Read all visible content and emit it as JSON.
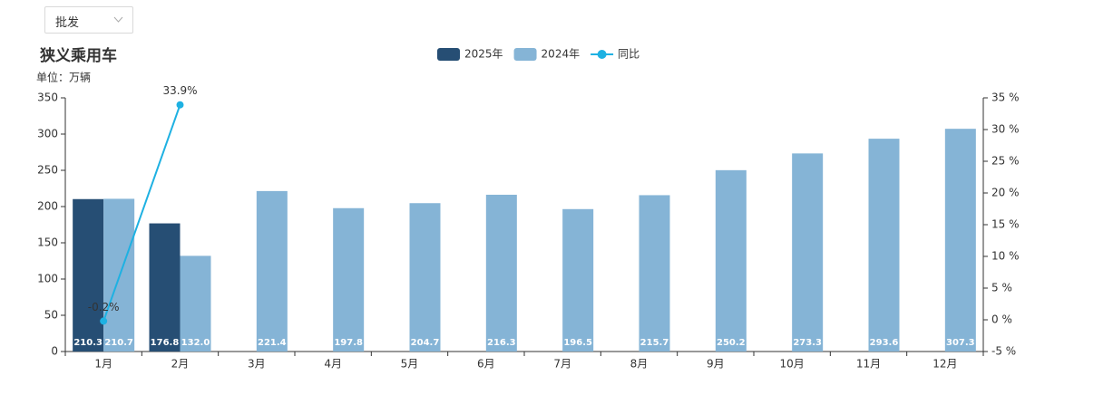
{
  "dropdown": {
    "label": "批发"
  },
  "chart_data": {
    "type": "bar",
    "title": "狭义乘用车",
    "y_axis_label": "单位：万辆",
    "categories": [
      "1月",
      "2月",
      "3月",
      "4月",
      "5月",
      "6月",
      "7月",
      "8月",
      "9月",
      "10月",
      "11月",
      "12月"
    ],
    "series": [
      {
        "name": "2025年",
        "color": "#264e74",
        "values": [
          210.3,
          176.8,
          null,
          null,
          null,
          null,
          null,
          null,
          null,
          null,
          null,
          null
        ],
        "value_labels": [
          "210.3",
          "176.8",
          null,
          null,
          null,
          null,
          null,
          null,
          null,
          null,
          null,
          null
        ]
      },
      {
        "name": "2024年",
        "color": "#85b4d6",
        "values": [
          210.7,
          132.0,
          221.4,
          197.8,
          204.7,
          216.3,
          196.5,
          215.7,
          250.2,
          273.3,
          293.6,
          307.3
        ],
        "value_labels": [
          "210.7",
          "132.0",
          "221.4",
          "197.8",
          "204.7",
          "216.3",
          "196.5",
          "215.7",
          "250.2",
          "273.3",
          "293.6",
          "307.3"
        ]
      },
      {
        "name": "同比",
        "type": "line",
        "axis": "y2",
        "color": "#1eb1e2",
        "values": [
          -0.2,
          33.9,
          null,
          null,
          null,
          null,
          null,
          null,
          null,
          null,
          null,
          null
        ],
        "value_labels": [
          "-0.2%",
          "33.9%",
          null,
          null,
          null,
          null,
          null,
          null,
          null,
          null,
          null,
          null
        ]
      }
    ],
    "ylim": [
      0,
      350
    ],
    "yticks": [
      0,
      50,
      100,
      150,
      200,
      250,
      300,
      350
    ],
    "y2lim": [
      -5,
      35
    ],
    "y2ticks": [
      {
        "value": -5,
        "label": "-5 %"
      },
      {
        "value": 0,
        "label": "0 %"
      },
      {
        "value": 5,
        "label": "5 %"
      },
      {
        "value": 10,
        "label": "10 %"
      },
      {
        "value": 15,
        "label": "15 %"
      },
      {
        "value": 20,
        "label": "20 %"
      },
      {
        "value": 25,
        "label": "25 %"
      },
      {
        "value": 30,
        "label": "30 %"
      },
      {
        "value": 35,
        "label": "35 %"
      }
    ],
    "grid": false
  }
}
